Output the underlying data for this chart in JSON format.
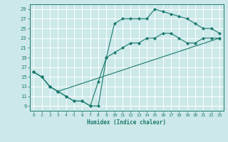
{
  "xlabel": "Humidex (Indice chaleur)",
  "xlim": [
    -0.5,
    23.5
  ],
  "ylim": [
    8.0,
    30.0
  ],
  "xticks": [
    0,
    1,
    2,
    3,
    4,
    5,
    6,
    7,
    8,
    9,
    10,
    11,
    12,
    13,
    14,
    15,
    16,
    17,
    18,
    19,
    20,
    21,
    22,
    23
  ],
  "yticks": [
    9,
    11,
    13,
    15,
    17,
    19,
    21,
    23,
    25,
    27,
    29
  ],
  "bg_color": "#cce8e8",
  "grid_color": "#ffffff",
  "line_color": "#1a7a6e",
  "curve1_x": [
    0,
    1,
    2,
    3,
    4,
    5,
    6,
    7,
    8,
    9,
    10,
    11,
    12,
    13,
    14,
    15,
    16,
    17,
    18,
    19,
    20,
    21,
    22,
    23
  ],
  "curve1_y": [
    16,
    15,
    13,
    12,
    11,
    10,
    10,
    9,
    9,
    19,
    26,
    27,
    27,
    27,
    27,
    29,
    28.5,
    28,
    27.5,
    27,
    26,
    25,
    25,
    24
  ],
  "curve2_x": [
    0,
    1,
    2,
    3,
    4,
    5,
    6,
    7,
    8,
    9,
    10,
    11,
    12,
    13,
    14,
    15,
    16,
    17,
    18,
    19,
    20,
    21,
    22,
    23
  ],
  "curve2_y": [
    16,
    15,
    13,
    12,
    11,
    10,
    10,
    9,
    14,
    19,
    20,
    21,
    22,
    22,
    23,
    23,
    24,
    24,
    23,
    22,
    22,
    23,
    23,
    23
  ],
  "curve3_x": [
    0,
    1,
    2,
    3,
    23
  ],
  "curve3_y": [
    16,
    15,
    13,
    12,
    23
  ]
}
